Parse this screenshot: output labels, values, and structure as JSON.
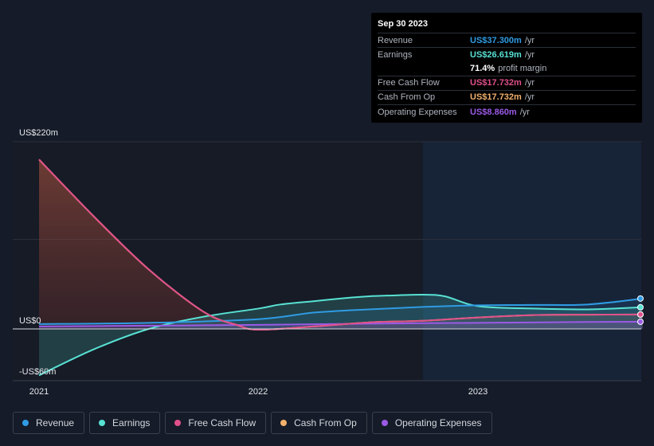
{
  "tooltip": {
    "date": "Sep 30 2023",
    "rows": [
      {
        "label": "Revenue",
        "value": "US$37.300m",
        "unit": "/yr",
        "color": "#2f9be3"
      },
      {
        "label": "Earnings",
        "value": "US$26.619m",
        "unit": "/yr",
        "color": "#58e1d3"
      },
      {
        "label": "",
        "value": "71.4%",
        "unit": "profit margin",
        "color": "#ffffff"
      },
      {
        "label": "Free Cash Flow",
        "value": "US$17.732m",
        "unit": "/yr",
        "color": "#e0508a"
      },
      {
        "label": "Cash From Op",
        "value": "US$17.732m",
        "unit": "/yr",
        "color": "#f2b06c"
      },
      {
        "label": "Operating Expenses",
        "value": "US$8.860m",
        "unit": "/yr",
        "color": "#9b5ae6"
      }
    ]
  },
  "legend": [
    {
      "label": "Revenue",
      "color": "#2f9be3"
    },
    {
      "label": "Earnings",
      "color": "#58e1d3"
    },
    {
      "label": "Free Cash Flow",
      "color": "#e0508a"
    },
    {
      "label": "Cash From Op",
      "color": "#f2b06c"
    },
    {
      "label": "Operating Expenses",
      "color": "#9b5ae6"
    }
  ],
  "chart_data": {
    "type": "line",
    "y_axis_labels": [
      "US$220m",
      "US$0",
      "-US$60m"
    ],
    "x_tick_labels": [
      "2021",
      "2022",
      "2023"
    ],
    "ylim": [
      -60,
      220
    ],
    "x_range": [
      2020.99,
      2023.76
    ],
    "forecast_region_start": 2022.75,
    "series": [
      {
        "name": "Revenue",
        "color": "#2f9be3",
        "x": [
          2021.0,
          2021.5,
          2022.0,
          2022.25,
          2022.5,
          2022.75,
          2023.0,
          2023.25,
          2023.5,
          2023.75
        ],
        "values": [
          6,
          7.5,
          12,
          20,
          24,
          27,
          29,
          29.5,
          30,
          37.3
        ]
      },
      {
        "name": "Earnings",
        "color": "#58e1d3",
        "x": [
          2021.0,
          2021.25,
          2021.5,
          2021.75,
          2022.0,
          2022.1,
          2022.25,
          2022.4,
          2022.5,
          2022.6,
          2022.75,
          2022.85,
          2023.0,
          2023.25,
          2023.5,
          2023.75
        ],
        "values": [
          -57,
          -25,
          0,
          15,
          25,
          30,
          34,
          38,
          40,
          41,
          42,
          40,
          28,
          25,
          24,
          26.6
        ]
      },
      {
        "name": "Free Cash Flow",
        "color": "#e0508a",
        "x": [
          2021.0,
          2021.25,
          2021.5,
          2021.75,
          2021.9,
          2022.0,
          2022.25,
          2022.5,
          2022.75,
          2023.0,
          2023.25,
          2023.5,
          2023.75
        ],
        "values": [
          208,
          138,
          73,
          21,
          5,
          -1,
          3,
          8,
          10,
          14,
          17,
          17.5,
          17.7
        ]
      },
      {
        "name": "Cash From Op",
        "color": "#f2b06c",
        "x": [
          2021.0,
          2021.25,
          2021.5,
          2021.75,
          2021.9,
          2022.0,
          2022.25,
          2022.5,
          2022.75,
          2023.0,
          2023.25,
          2023.5,
          2023.75
        ],
        "values": [
          208,
          138,
          73,
          21,
          5,
          -1,
          3,
          8,
          10,
          14,
          17,
          17.5,
          17.7
        ]
      },
      {
        "name": "Operating Expenses",
        "color": "#9b5ae6",
        "x": [
          2021.0,
          2021.5,
          2022.0,
          2022.5,
          2023.0,
          2023.5,
          2023.75
        ],
        "values": [
          3,
          4,
          5,
          6.5,
          7.5,
          8.5,
          8.86
        ]
      }
    ]
  }
}
